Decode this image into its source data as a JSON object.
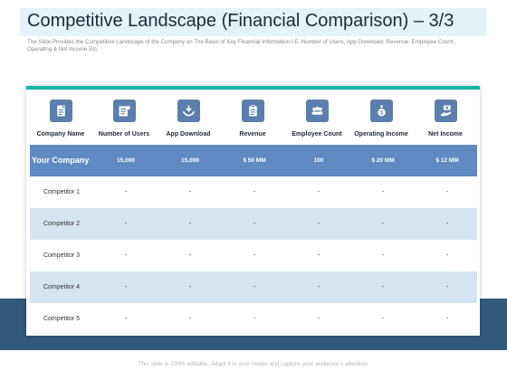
{
  "title": "Competitive Landscape (Financial Comparison) – 3/3",
  "subtitle": "The Slide Provides the Competitive Landscape of the Company on The Basis of Key Financial Information I.E. Number of Users, App Download, Revenue, Employee Count, Operating & Net Income Etc.",
  "colors": {
    "accent": "#15b5a9",
    "header_row": "#5f8ac2",
    "alt_row": "#d6e3f0",
    "icon_bg": "#5a7fad",
    "band": "#31597a"
  },
  "columns": [
    {
      "label": "Company Name",
      "icon": "document-icon"
    },
    {
      "label": "Number of Users",
      "icon": "users-list-icon"
    },
    {
      "label": "App Download",
      "icon": "download-hands-icon"
    },
    {
      "label": "Revenue",
      "icon": "clipboard-icon"
    },
    {
      "label": "Employee Count",
      "icon": "people-group-icon"
    },
    {
      "label": "Operating Income",
      "icon": "money-bag-icon"
    },
    {
      "label": "Net Income",
      "icon": "cash-hand-icon"
    }
  ],
  "rows": [
    {
      "name": "Your Company",
      "values": [
        "15,000",
        "15,000",
        "$ 50 MM",
        "100",
        "$ 20 MM",
        "$ 12 MM"
      ]
    },
    {
      "name": "Competitor 1",
      "values": [
        "-",
        "-",
        "-",
        "-",
        "-",
        "-"
      ]
    },
    {
      "name": "Competitor 2",
      "values": [
        "-",
        "-",
        "-",
        "-",
        "-",
        "-"
      ]
    },
    {
      "name": "Competitor 3",
      "values": [
        "-",
        "-",
        "-",
        "-",
        "-",
        "-"
      ]
    },
    {
      "name": "Competitor 4",
      "values": [
        "-",
        "-",
        "-",
        "-",
        "-",
        "-"
      ]
    },
    {
      "name": "Competitor 5",
      "values": [
        "-",
        "-",
        "-",
        "-",
        "-",
        "-"
      ]
    }
  ],
  "footer": "This slide is 100% editable. Adapt it to your needs and capture your audience's attention."
}
